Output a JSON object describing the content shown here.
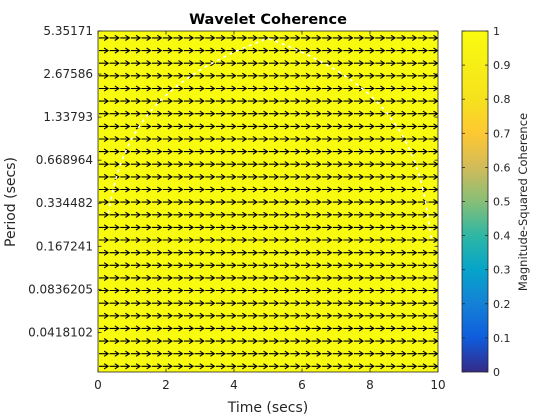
{
  "chart_data": {
    "type": "heatmap",
    "title": "Wavelet Coherence",
    "xlabel": "Time (secs)",
    "ylabel": "Period (secs)",
    "xlim": [
      0,
      10
    ],
    "x_ticks": [
      0,
      2,
      4,
      6,
      8,
      10
    ],
    "y_scale": "log",
    "y_ticks": [
      "5.35171",
      "2.67586",
      "1.33793",
      "0.668964",
      "0.334482",
      "0.167241",
      "0.0836205",
      "0.0418102"
    ],
    "y_tick_values": [
      5.35171,
      2.67586,
      1.33793,
      0.668964,
      0.334482,
      0.167241,
      0.0836205,
      0.0418102
    ],
    "ylim_log2": [
      -5.5,
      2.42
    ],
    "coherence_value": 1,
    "phase_arrows": "rightward (in-phase) across entire plane",
    "cone_of_influence": "white dashed curve",
    "colorbar": {
      "label": "Magnitude-Squared Coherence",
      "range": [
        0,
        1
      ],
      "ticks": [
        "0",
        "0.1",
        "0.2",
        "0.3",
        "0.4",
        "0.5",
        "0.6",
        "0.7",
        "0.8",
        "0.9",
        "1"
      ],
      "colormap": "parula"
    },
    "fill_color": "#f9fb0e"
  }
}
